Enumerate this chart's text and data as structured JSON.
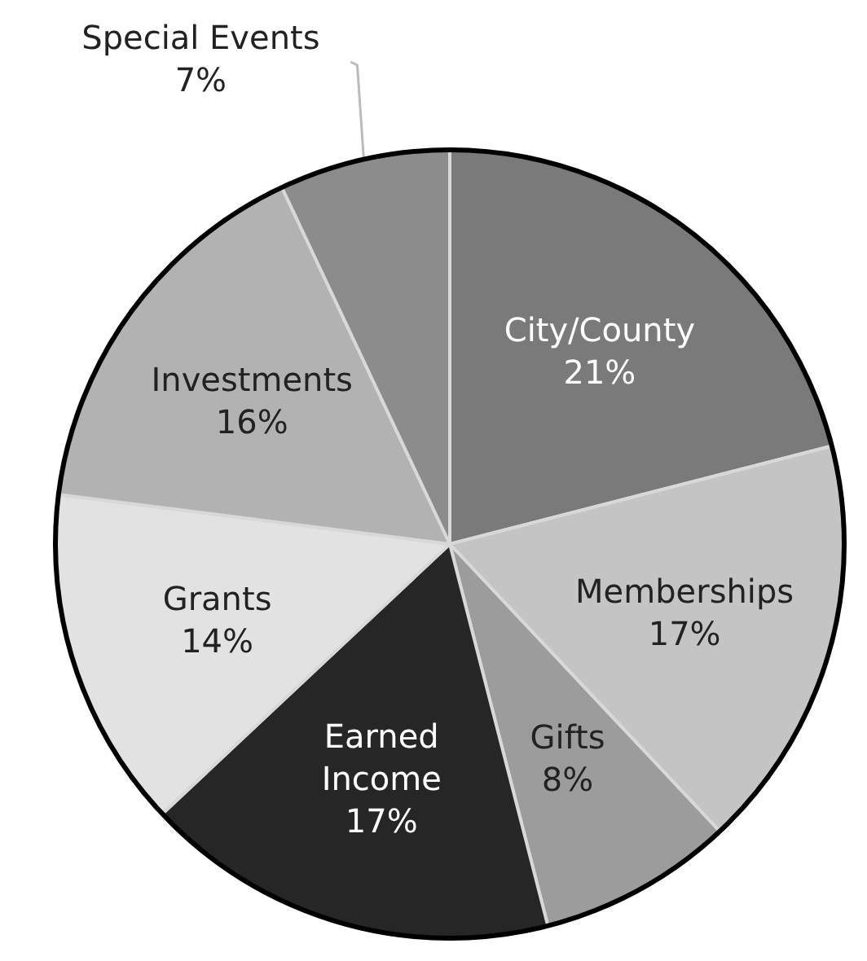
{
  "chart_data": {
    "type": "pie",
    "categories": [
      "City/County",
      "Memberships",
      "Gifts",
      "Earned Income",
      "Grants",
      "Investments",
      "Special Events"
    ],
    "values": [
      21,
      17,
      8,
      17,
      14,
      16,
      7
    ],
    "value_labels": [
      "21%",
      "17%",
      "8%",
      "17%",
      "14%",
      "16%",
      "7%"
    ],
    "colors": [
      "#7a7a7a",
      "#c4c4c4",
      "#9c9c9c",
      "#262626",
      "#e2e2e2",
      "#b2b2b2",
      "#8c8c8c"
    ]
  }
}
